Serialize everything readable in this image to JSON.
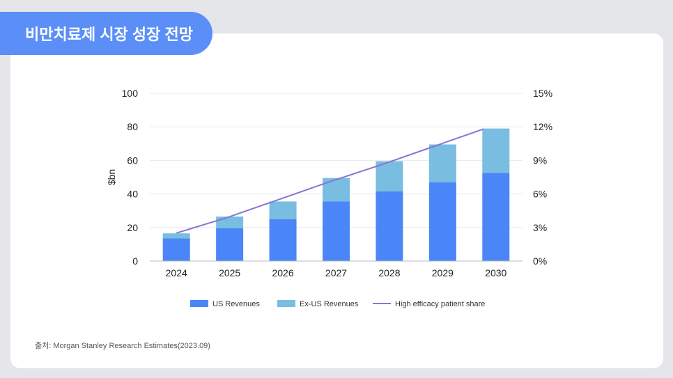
{
  "page": {
    "title": "비만치료제 시장 성장 전망",
    "source": "출처: Morgan Stanley Research Estimates(2023.09)"
  },
  "chart_data": {
    "type": "bar",
    "stacked": true,
    "categories": [
      "2024",
      "2025",
      "2026",
      "2027",
      "2028",
      "2029",
      "2030"
    ],
    "ylabel": "$bn",
    "ylim": [
      0,
      100
    ],
    "y_ticks": [
      "0",
      "20",
      "40",
      "60",
      "80",
      "100"
    ],
    "y2lim": [
      0,
      15
    ],
    "y2_ticks": [
      "0%",
      "3%",
      "6%",
      "9%",
      "12%",
      "15%"
    ],
    "grid": true,
    "legend_position": "bottom",
    "series": [
      {
        "name": "US Revenues",
        "type": "bar",
        "color": "#4a86f7",
        "values": [
          13.5,
          19.5,
          25,
          35.5,
          41.5,
          47,
          52.5
        ]
      },
      {
        "name": "Ex-US Revenues",
        "type": "bar",
        "color": "#79bde0",
        "values": [
          3,
          7,
          10.5,
          14,
          18,
          22.5,
          26.5
        ]
      },
      {
        "name": "High efficacy patient share",
        "type": "line",
        "axis": "right",
        "color": "#8674d6",
        "values": [
          2.5,
          3.9,
          5.5,
          7.1,
          8.6,
          10.2,
          11.8
        ]
      }
    ]
  }
}
